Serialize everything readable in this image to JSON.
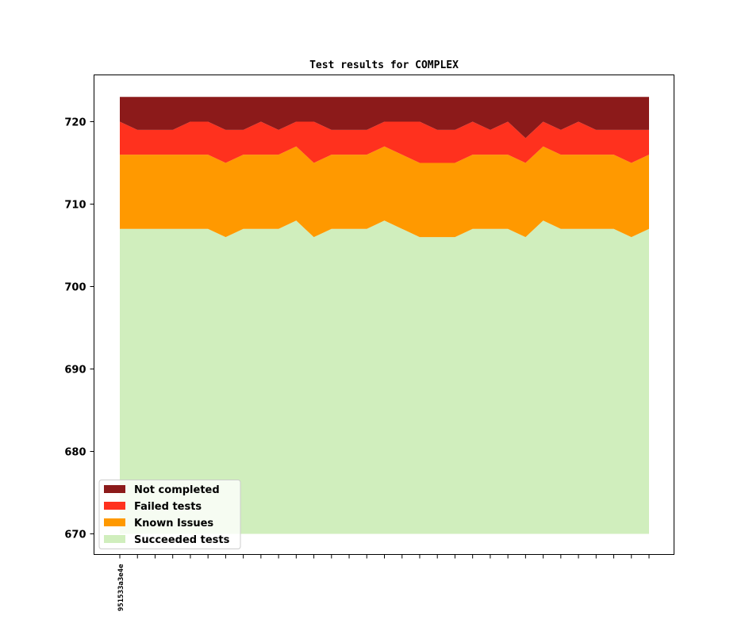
{
  "chart_data": {
    "type": "area",
    "stacked": true,
    "title": "Test results for COMPLEX",
    "xlabel": "",
    "ylabel": "",
    "ylim": [
      667.5,
      725
    ],
    "yticks": [
      670,
      680,
      690,
      700,
      710,
      720
    ],
    "x_tick_count": 31,
    "x_tick_labels": [
      "951533a3e4e"
    ],
    "baseline": 670,
    "grid": false,
    "legend_position": "lower-left",
    "series": [
      {
        "name": "Succeeded tests",
        "color": "#d0eebd",
        "values": [
          707,
          707,
          707,
          707,
          707,
          707,
          706,
          707,
          707,
          707,
          708,
          706,
          707,
          707,
          707,
          708,
          707,
          706,
          706,
          706,
          707,
          707,
          707,
          706,
          708,
          707,
          707,
          707,
          707,
          706,
          707
        ]
      },
      {
        "name": "Known Issues",
        "color": "#ff9900",
        "values": [
          716,
          716,
          716,
          716,
          716,
          716,
          715,
          716,
          716,
          716,
          717,
          715,
          716,
          716,
          716,
          717,
          716,
          715,
          715,
          715,
          716,
          716,
          716,
          715,
          717,
          716,
          716,
          716,
          716,
          715,
          716
        ]
      },
      {
        "name": "Failed tests",
        "color": "#ff311e",
        "values": [
          720,
          719,
          719,
          719,
          720,
          720,
          719,
          719,
          720,
          719,
          720,
          720,
          719,
          719,
          719,
          720,
          720,
          720,
          719,
          719,
          720,
          719,
          720,
          718,
          720,
          719,
          720,
          719,
          719,
          719,
          719
        ]
      },
      {
        "name": "Not completed",
        "color": "#8c1a1a",
        "values": [
          723,
          723,
          723,
          723,
          723,
          723,
          723,
          723,
          723,
          723,
          723,
          723,
          723,
          723,
          723,
          723,
          723,
          723,
          723,
          723,
          723,
          723,
          723,
          723,
          723,
          723,
          723,
          723,
          723,
          723,
          723
        ]
      }
    ],
    "legend_order": [
      "Not completed",
      "Failed tests",
      "Known Issues",
      "Succeeded tests"
    ]
  }
}
